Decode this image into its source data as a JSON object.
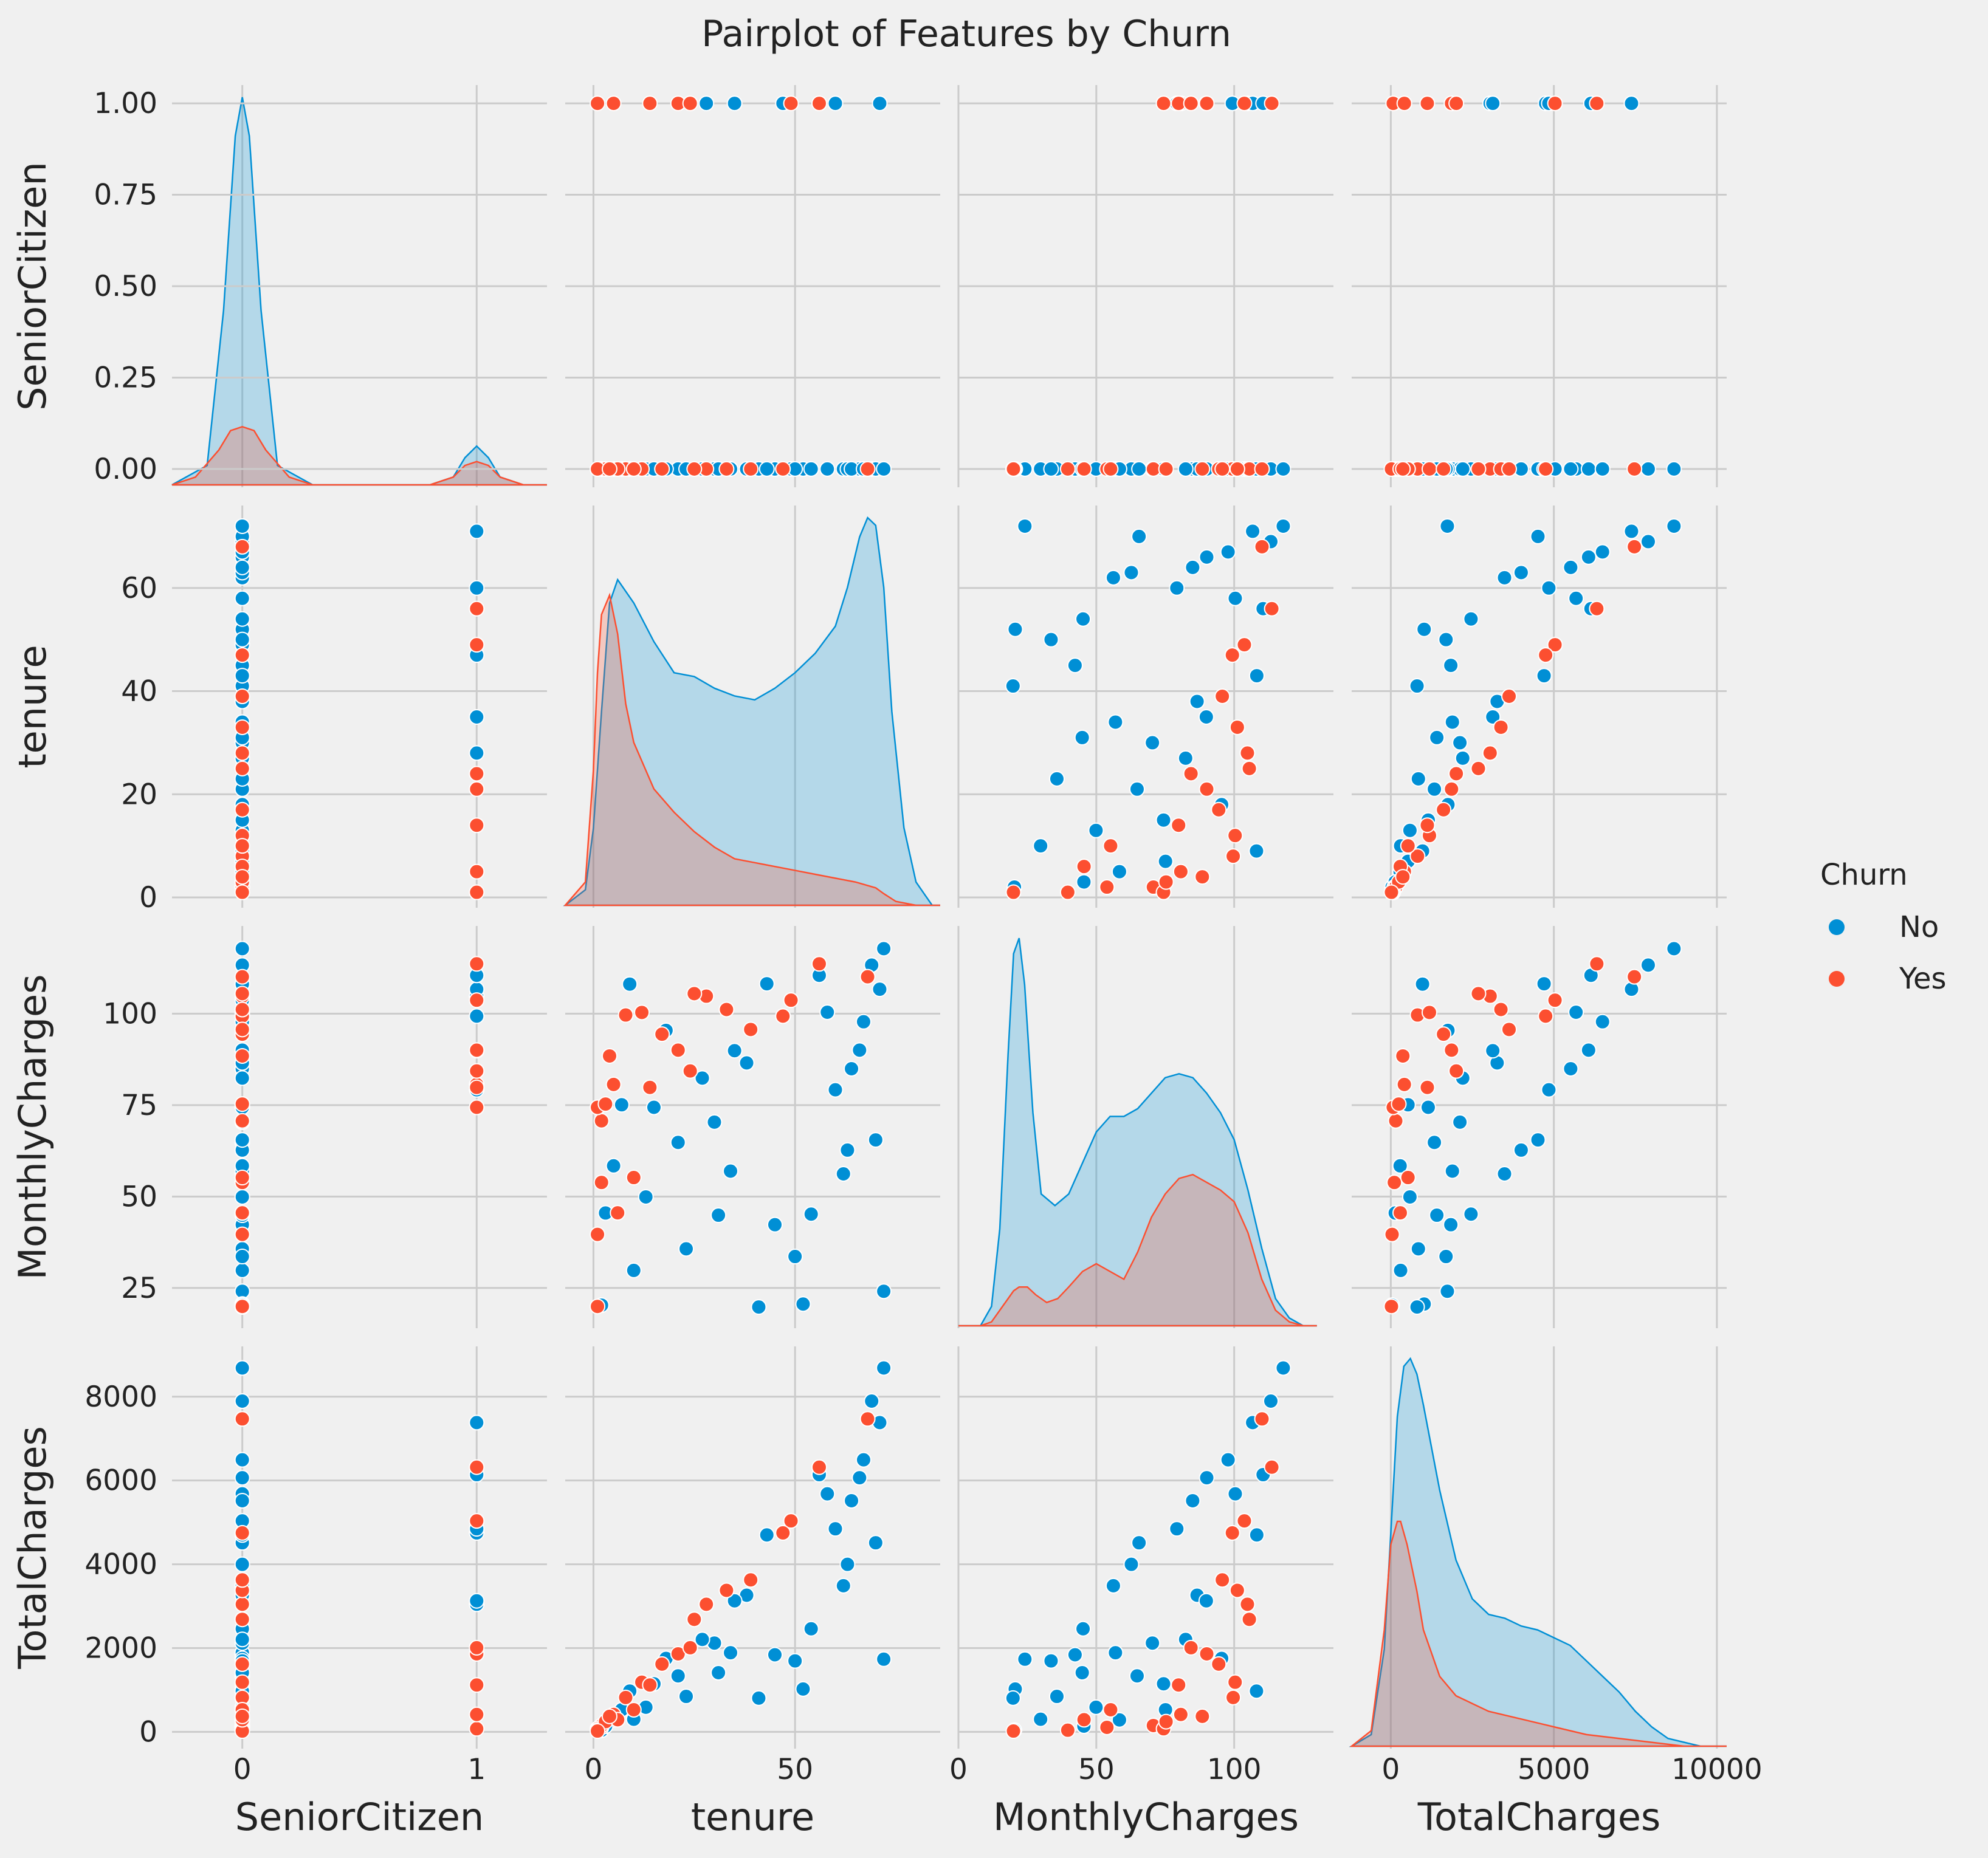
{
  "chart_data": {
    "type": "scatter",
    "title": "Pairplot of Features by Churn",
    "variables": [
      "SeniorCitizen",
      "tenure",
      "MonthlyCharges",
      "TotalCharges"
    ],
    "hue": "Churn",
    "legend": {
      "title": "Churn",
      "placement": "right",
      "entries": [
        {
          "name": "No",
          "color": "#008fd5"
        },
        {
          "name": "Yes",
          "color": "#fc4f30"
        }
      ]
    },
    "grid": true,
    "axes": {
      "SeniorCitizen": {
        "range": [
          -0.3,
          1.3
        ],
        "x_ticks": [
          0,
          1
        ],
        "x_tick_labels": [
          "0",
          "1"
        ],
        "y_range": [
          -0.05,
          1.05
        ],
        "y_ticks": [
          0.0,
          0.25,
          0.5,
          0.75,
          1.0
        ],
        "y_tick_labels": [
          "0.00",
          "0.25",
          "0.50",
          "0.75",
          "1.00"
        ]
      },
      "tenure": {
        "range": [
          -7,
          86
        ],
        "y_range": [
          -2,
          76
        ],
        "ticks": [
          0,
          50
        ],
        "tick_labels": [
          "0",
          "50"
        ],
        "y_ticks": [
          0,
          20,
          40,
          60
        ],
        "y_tick_labels": [
          "0",
          "20",
          "40",
          "60"
        ]
      },
      "MonthlyCharges": {
        "range": [
          0,
          136
        ],
        "y_range": [
          14,
          124
        ],
        "ticks": [
          0,
          50,
          100
        ],
        "tick_labels": [
          "0",
          "50",
          "100"
        ],
        "y_ticks": [
          25,
          50,
          75,
          100
        ],
        "y_tick_labels": [
          "25",
          "50",
          "75",
          "100"
        ]
      },
      "TotalCharges": {
        "range": [
          -1200,
          10300
        ],
        "y_range": [
          -400,
          9200
        ],
        "ticks": [
          0,
          5000,
          10000
        ],
        "tick_labels": [
          "0",
          "5000",
          "10000"
        ],
        "y_ticks": [
          0,
          2000,
          4000,
          6000,
          8000
        ],
        "y_tick_labels": [
          "0",
          "2000",
          "4000",
          "6000",
          "8000"
        ]
      }
    },
    "diagonal_kde": {
      "SeniorCitizen": {
        "No": {
          "x": [
            -0.3,
            -0.15,
            -0.08,
            -0.03,
            0,
            0.03,
            0.08,
            0.15,
            0.3,
            0.5,
            0.8,
            0.9,
            0.95,
            1.0,
            1.05,
            1.1,
            1.2,
            1.3
          ],
          "density": [
            0.0,
            0.05,
            0.45,
            0.9,
            1.0,
            0.9,
            0.45,
            0.05,
            0.0,
            0.0,
            0.0,
            0.02,
            0.07,
            0.1,
            0.07,
            0.02,
            0.0,
            0.0
          ]
        },
        "Yes": {
          "x": [
            -0.3,
            -0.2,
            -0.1,
            -0.05,
            0,
            0.05,
            0.1,
            0.2,
            0.3,
            0.5,
            0.8,
            0.9,
            0.95,
            1.0,
            1.05,
            1.1,
            1.2,
            1.3
          ],
          "density": [
            0.0,
            0.02,
            0.09,
            0.14,
            0.15,
            0.14,
            0.09,
            0.02,
            0.0,
            0.0,
            0.0,
            0.02,
            0.05,
            0.06,
            0.05,
            0.02,
            0.0,
            0.0
          ]
        }
      },
      "tenure": {
        "No": {
          "x": [
            -7,
            -2,
            0,
            2,
            4,
            6,
            10,
            15,
            20,
            25,
            30,
            35,
            40,
            45,
            50,
            55,
            60,
            63,
            66,
            68,
            70,
            72,
            74,
            77,
            80,
            84,
            86
          ],
          "density": [
            0.0,
            0.04,
            0.2,
            0.5,
            0.78,
            0.84,
            0.78,
            0.68,
            0.6,
            0.59,
            0.56,
            0.54,
            0.53,
            0.56,
            0.6,
            0.65,
            0.72,
            0.82,
            0.95,
            1.0,
            0.98,
            0.82,
            0.5,
            0.2,
            0.06,
            0.0,
            0.0
          ]
        },
        "Yes": {
          "x": [
            -7,
            -2,
            0,
            1,
            2,
            4,
            6,
            8,
            10,
            15,
            20,
            25,
            30,
            35,
            40,
            45,
            50,
            55,
            60,
            65,
            70,
            72,
            75,
            80,
            86
          ],
          "density": [
            0.0,
            0.06,
            0.35,
            0.6,
            0.75,
            0.8,
            0.7,
            0.52,
            0.42,
            0.3,
            0.24,
            0.19,
            0.15,
            0.12,
            0.11,
            0.1,
            0.09,
            0.08,
            0.07,
            0.06,
            0.045,
            0.03,
            0.01,
            0.0,
            0.0
          ]
        }
      },
      "MonthlyCharges": {
        "No": {
          "x": [
            0,
            8,
            12,
            15,
            18,
            20,
            22,
            24,
            27,
            30,
            35,
            40,
            45,
            50,
            55,
            60,
            65,
            70,
            75,
            80,
            85,
            90,
            95,
            100,
            105,
            110,
            115,
            120,
            125,
            130
          ],
          "density": [
            0.0,
            0.0,
            0.05,
            0.25,
            0.7,
            0.96,
            1.0,
            0.88,
            0.55,
            0.34,
            0.31,
            0.34,
            0.42,
            0.5,
            0.54,
            0.54,
            0.56,
            0.6,
            0.64,
            0.65,
            0.64,
            0.6,
            0.55,
            0.48,
            0.35,
            0.2,
            0.07,
            0.02,
            0.0,
            0.0
          ]
        },
        "Yes": {
          "x": [
            0,
            8,
            12,
            15,
            18,
            20,
            22,
            25,
            28,
            32,
            36,
            40,
            45,
            50,
            55,
            60,
            65,
            70,
            75,
            80,
            85,
            90,
            95,
            100,
            105,
            110,
            115,
            120,
            125,
            130
          ],
          "density": [
            0.0,
            0.0,
            0.01,
            0.04,
            0.07,
            0.09,
            0.1,
            0.1,
            0.08,
            0.06,
            0.07,
            0.1,
            0.14,
            0.16,
            0.14,
            0.12,
            0.19,
            0.28,
            0.34,
            0.38,
            0.39,
            0.37,
            0.35,
            0.32,
            0.24,
            0.12,
            0.04,
            0.01,
            0.0,
            0.0
          ]
        }
      },
      "TotalCharges": {
        "No": {
          "x": [
            -1200,
            -600,
            -200,
            0,
            200,
            400,
            600,
            800,
            1000,
            1500,
            2000,
            2500,
            3000,
            3500,
            4000,
            4500,
            5000,
            5500,
            6000,
            6500,
            7000,
            7500,
            8000,
            8500,
            9000,
            9500,
            10300
          ],
          "density": [
            0.0,
            0.03,
            0.25,
            0.55,
            0.85,
            0.98,
            1.0,
            0.96,
            0.88,
            0.66,
            0.48,
            0.38,
            0.34,
            0.33,
            0.31,
            0.3,
            0.28,
            0.26,
            0.22,
            0.18,
            0.14,
            0.09,
            0.05,
            0.02,
            0.01,
            0.0,
            0.0
          ]
        },
        "Yes": {
          "x": [
            -1200,
            -600,
            -200,
            0,
            200,
            300,
            500,
            800,
            1000,
            1500,
            2000,
            2500,
            3000,
            4000,
            5000,
            6000,
            7000,
            8000,
            9000,
            10300
          ],
          "density": [
            0.0,
            0.04,
            0.3,
            0.52,
            0.58,
            0.58,
            0.52,
            0.4,
            0.3,
            0.18,
            0.13,
            0.11,
            0.09,
            0.07,
            0.05,
            0.03,
            0.02,
            0.01,
            0.0,
            0.0
          ]
        }
      }
    },
    "scatter_samples": {
      "No": [
        [
          0,
          72,
          24.1,
          1734.6
        ],
        [
          0,
          45,
          42.3,
          1840.8
        ],
        [
          0,
          10,
          29.8,
          301.9
        ],
        [
          1,
          28,
          104.8,
          3046.1
        ],
        [
          0,
          62,
          56.2,
          3487.9
        ],
        [
          0,
          13,
          49.9,
          587.5
        ],
        [
          0,
          25,
          105.5,
          2686.1
        ],
        [
          0,
          69,
          113.3,
          7895.2
        ],
        [
          0,
          52,
          20.6,
          1022.9
        ],
        [
          1,
          71,
          106.7,
          7382.3
        ],
        [
          0,
          21,
          64.8,
          1336.8
        ],
        [
          0,
          58,
          100.4,
          5681.1
        ],
        [
          0,
          2,
          20.3,
          40.1
        ],
        [
          0,
          34,
          56.95,
          1889.5
        ],
        [
          0,
          49,
          103.7,
          5036.3
        ],
        [
          1,
          47,
          99.35,
          4749.2
        ],
        [
          0,
          66,
          90.05,
          6066.1
        ],
        [
          0,
          63,
          62.7,
          3998.8
        ],
        [
          0,
          30,
          70.35,
          2120.2
        ],
        [
          0,
          18,
          95.45,
          1752.6
        ],
        [
          1,
          56,
          110.5,
          6139.5
        ],
        [
          0,
          41,
          19.8,
          805.1
        ],
        [
          0,
          7,
          75.1,
          528.4
        ],
        [
          0,
          64,
          84.95,
          5517.4
        ],
        [
          0,
          38,
          86.55,
          3261.4
        ],
        [
          1,
          60,
          79.2,
          4847.1
        ],
        [
          0,
          15,
          74.4,
          1148.1
        ],
        [
          0,
          54,
          45.2,
          2460.6
        ],
        [
          0,
          5,
          58.4,
          286.1
        ],
        [
          0,
          70,
          65.5,
          4513.3
        ],
        [
          1,
          35,
          89.9,
          3128.2
        ],
        [
          0,
          43,
          108.2,
          4700.9
        ],
        [
          0,
          23,
          35.7,
          846.3
        ],
        [
          0,
          67,
          97.8,
          6493.2
        ],
        [
          0,
          31,
          44.9,
          1412.2
        ],
        [
          0,
          72,
          117.8,
          8684.8
        ],
        [
          0,
          9,
          108.1,
          973.6
        ],
        [
          0,
          3,
          45.5,
          136.3
        ],
        [
          0,
          50,
          33.6,
          1694.2
        ],
        [
          0,
          27,
          82.4,
          2206.6
        ]
      ],
      "Yes": [
        [
          0,
          2,
          53.85,
          108.15
        ],
        [
          0,
          2,
          70.7,
          151.65
        ],
        [
          0,
          8,
          99.65,
          820.5
        ],
        [
          0,
          28,
          104.8,
          3046.05
        ],
        [
          1,
          1,
          74.4,
          74.4
        ],
        [
          1,
          49,
          103.7,
          5036.3
        ],
        [
          0,
          25,
          105.5,
          2686.05
        ],
        [
          0,
          1,
          39.65,
          39.65
        ],
        [
          0,
          12,
          100.35,
          1185.6
        ],
        [
          1,
          5,
          80.65,
          415.3
        ],
        [
          0,
          10,
          55.2,
          528.35
        ],
        [
          0,
          47,
          99.35,
          4749.15
        ],
        [
          0,
          17,
          94.4,
          1617.5
        ],
        [
          1,
          21,
          90.05,
          1862.9
        ],
        [
          0,
          3,
          75.3,
          244.1
        ],
        [
          0,
          33,
          101.15,
          3377.8
        ],
        [
          0,
          1,
          19.95,
          19.95
        ],
        [
          1,
          56,
          113.65,
          6317.9
        ],
        [
          0,
          6,
          45.55,
          290.55
        ],
        [
          1,
          14,
          79.85,
          1119.9
        ],
        [
          0,
          68,
          110.1,
          7470.1
        ],
        [
          0,
          39,
          95.7,
          3627.8
        ],
        [
          0,
          4,
          88.45,
          370.65
        ],
        [
          1,
          24,
          84.35,
          2008.25
        ]
      ]
    }
  }
}
